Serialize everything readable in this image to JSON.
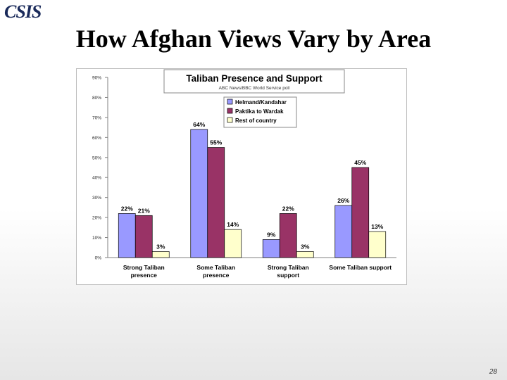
{
  "slide": {
    "logo": "CSIS",
    "title": "How Afghan Views Vary by Area",
    "page_number": "28"
  },
  "chart_data": {
    "type": "bar",
    "title": "Taliban Presence and Support",
    "subtitle": "ABC News/BBC World Service poll",
    "xlabel": "",
    "ylabel": "",
    "ylim": [
      0,
      90
    ],
    "yticks": [
      "0%",
      "10%",
      "20%",
      "30%",
      "40%",
      "50%",
      "60%",
      "70%",
      "80%",
      "90%"
    ],
    "grid": false,
    "legend_placement": "top-right",
    "categories": [
      [
        "Strong Taliban",
        "presence"
      ],
      [
        "Some Taliban",
        "presence"
      ],
      [
        "Strong Taliban",
        "support"
      ],
      [
        "Some Taliban support"
      ]
    ],
    "series": [
      {
        "name": "Helmand/Kandahar",
        "color": "#9999ff",
        "values": [
          22,
          64,
          9,
          26
        ],
        "labels": [
          "22%",
          "64%",
          "9%",
          "26%"
        ]
      },
      {
        "name": "Paktika to Wardak",
        "color": "#993366",
        "values": [
          21,
          55,
          22,
          45
        ],
        "labels": [
          "21%",
          "55%",
          "22%",
          "45%"
        ]
      },
      {
        "name": "Rest of country",
        "color": "#ffffcc",
        "values": [
          3,
          14,
          3,
          13
        ],
        "labels": [
          "3%",
          "14%",
          "3%",
          "13%"
        ]
      }
    ]
  }
}
